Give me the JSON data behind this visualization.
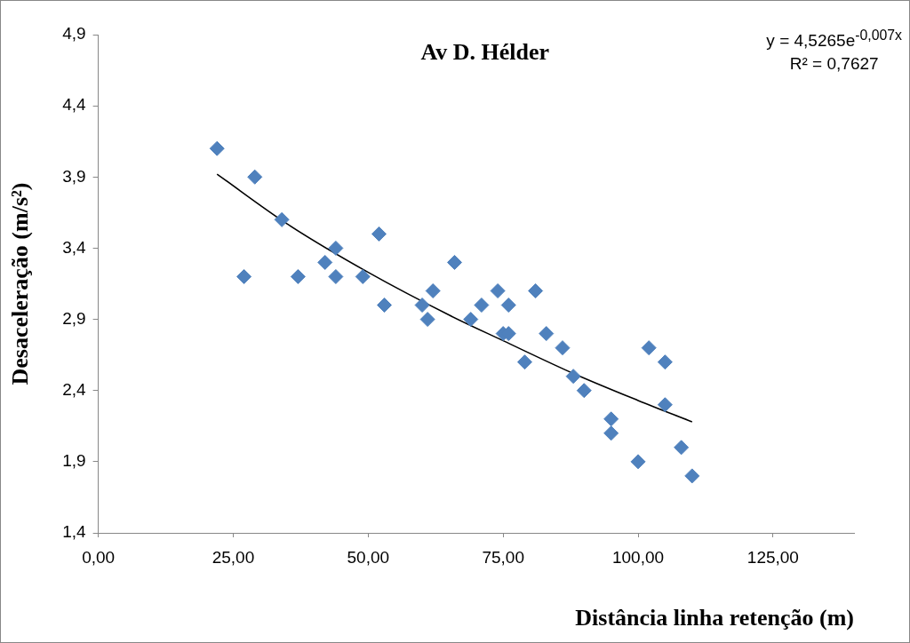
{
  "chart_data": {
    "type": "scatter",
    "title": "Av D. Hélder",
    "xlabel": "Distância linha retenção (m)",
    "ylabel": "Desaceleração (m/s²)",
    "annotations": [
      "y = 4,5265e$^{-0,007x}$",
      "R² = 0,7627"
    ],
    "series": [
      {
        "type": "scatter",
        "color": "#4f81bd",
        "marker": "diamond",
        "x": [
          22,
          27,
          29,
          34,
          37,
          42,
          44,
          44,
          49,
          52,
          53,
          60,
          61,
          62,
          66,
          69,
          71,
          74,
          75,
          76,
          76,
          79,
          81,
          83,
          86,
          88,
          90,
          95,
          95,
          100,
          102,
          105,
          105,
          108,
          110
        ],
        "values": [
          4.1,
          3.2,
          3.9,
          3.6,
          3.2,
          3.3,
          3.4,
          3.2,
          3.2,
          3.5,
          3.0,
          3.0,
          2.9,
          3.1,
          3.3,
          2.9,
          3.0,
          3.1,
          2.8,
          3.0,
          2.8,
          2.6,
          3.1,
          2.8,
          2.7,
          2.5,
          2.4,
          2.2,
          2.1,
          1.9,
          2.7,
          2.6,
          2.3,
          2.0,
          1.8
        ]
      },
      {
        "type": "line",
        "color": "#000000",
        "marker": "none",
        "x": [
          22,
          35,
          50,
          65,
          75,
          88,
          100,
          110
        ],
        "values": [
          3.92,
          3.57,
          3.23,
          2.93,
          2.75,
          2.52,
          2.33,
          2.18
        ]
      }
    ],
    "xlim": [
      0,
      140
    ],
    "xticks": [
      {
        "value": 0,
        "label": "0,00"
      },
      {
        "value": 25,
        "label": "25,00"
      },
      {
        "value": 50,
        "label": "50,00"
      },
      {
        "value": 75,
        "label": "75,00"
      },
      {
        "value": 100,
        "label": "100,00"
      },
      {
        "value": 125,
        "label": "125,00"
      }
    ],
    "ylim": [
      1.4,
      4.9
    ],
    "yticks": [
      {
        "value": 1.4,
        "label": "1,4"
      },
      {
        "value": 1.9,
        "label": "1,9"
      },
      {
        "value": 2.4,
        "label": "2,4"
      },
      {
        "value": 2.9,
        "label": "2,9"
      },
      {
        "value": 3.4,
        "label": "3,4"
      },
      {
        "value": 3.9,
        "label": "3,9"
      },
      {
        "value": 4.4,
        "label": "4,4"
      },
      {
        "value": 4.9,
        "label": "4,9"
      }
    ],
    "grid": false,
    "legend": false
  }
}
